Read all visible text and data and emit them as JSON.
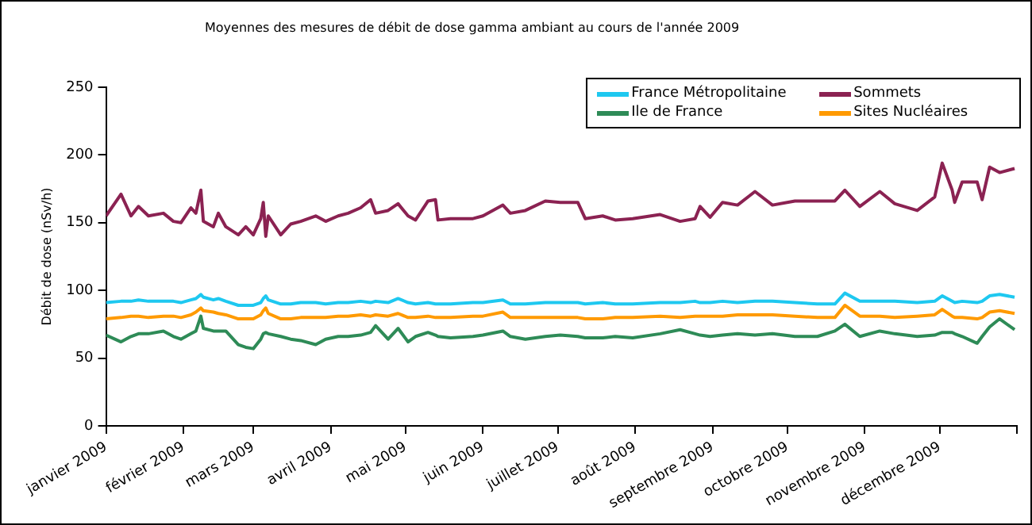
{
  "chart_data": {
    "type": "line",
    "title": "Moyennes des mesures de débit de dose gamma ambiant au cours de l'année 2009",
    "ylabel": "Débit de dose (nSv/h)",
    "x": [
      "2009-01-01",
      "2009-01-07",
      "2009-01-11",
      "2009-01-14",
      "2009-01-18",
      "2009-01-24",
      "2009-01-28",
      "2009-01-31",
      "2009-02-04",
      "2009-02-06",
      "2009-02-08",
      "2009-02-09",
      "2009-02-13",
      "2009-02-15",
      "2009-02-18",
      "2009-02-23",
      "2009-02-26",
      "2009-03-01",
      "2009-03-04",
      "2009-03-05",
      "2009-03-06",
      "2009-03-07",
      "2009-03-12",
      "2009-03-16",
      "2009-03-20",
      "2009-03-26",
      "2009-03-30",
      "2009-04-04",
      "2009-04-08",
      "2009-04-13",
      "2009-04-17",
      "2009-04-19",
      "2009-04-24",
      "2009-04-28",
      "2009-05-02",
      "2009-05-05",
      "2009-05-10",
      "2009-05-13",
      "2009-05-14",
      "2009-05-19",
      "2009-05-28",
      "2009-06-01",
      "2009-06-09",
      "2009-06-12",
      "2009-06-18",
      "2009-06-26",
      "2009-07-02",
      "2009-07-09",
      "2009-07-12",
      "2009-07-19",
      "2009-07-24",
      "2009-07-31",
      "2009-08-11",
      "2009-08-19",
      "2009-08-25",
      "2009-08-27",
      "2009-08-31",
      "2009-09-05",
      "2009-09-11",
      "2009-09-18",
      "2009-09-25",
      "2009-10-04",
      "2009-10-13",
      "2009-10-20",
      "2009-10-24",
      "2009-10-30",
      "2009-11-07",
      "2009-11-13",
      "2009-11-22",
      "2009-11-29",
      "2009-12-02",
      "2009-12-06",
      "2009-12-07",
      "2009-12-10",
      "2009-12-16",
      "2009-12-18",
      "2009-12-21",
      "2009-12-25",
      "2009-12-31"
    ],
    "series": [
      {
        "name": "France Métropolitaine",
        "color": "#1ec8f0",
        "values": [
          91,
          92,
          92,
          93,
          92,
          92,
          92,
          91,
          93,
          94,
          97,
          95,
          93,
          94,
          92,
          89,
          89,
          89,
          91,
          94,
          96,
          93,
          90,
          90,
          91,
          91,
          90,
          91,
          91,
          92,
          91,
          92,
          91,
          94,
          91,
          90,
          91,
          90,
          90,
          90,
          91,
          91,
          93,
          90,
          90,
          91,
          91,
          91,
          90,
          91,
          90,
          90,
          91,
          91,
          92,
          91,
          91,
          92,
          91,
          92,
          92,
          91,
          90,
          90,
          98,
          92,
          92,
          92,
          91,
          92,
          96,
          92,
          91,
          92,
          91,
          92,
          96,
          97,
          95
        ]
      },
      {
        "name": "Sommets",
        "color": "#8b2252",
        "values": [
          155,
          171,
          155,
          162,
          155,
          157,
          151,
          150,
          161,
          157,
          174,
          151,
          147,
          157,
          147,
          141,
          147,
          141,
          153,
          165,
          140,
          155,
          141,
          149,
          151,
          155,
          151,
          155,
          157,
          161,
          167,
          157,
          159,
          164,
          155,
          152,
          166,
          167,
          152,
          153,
          153,
          155,
          163,
          157,
          159,
          166,
          165,
          165,
          153,
          155,
          152,
          153,
          156,
          151,
          153,
          162,
          154,
          165,
          163,
          173,
          163,
          166,
          166,
          166,
          174,
          162,
          173,
          164,
          159,
          169,
          194,
          174,
          165,
          180,
          180,
          167,
          191,
          187,
          190
        ]
      },
      {
        "name": "Ile de France",
        "color": "#2e8b57",
        "values": [
          67,
          62,
          66,
          68,
          68,
          70,
          66,
          64,
          68,
          70,
          81,
          72,
          70,
          70,
          70,
          60,
          58,
          57,
          64,
          68,
          69,
          68,
          66,
          64,
          63,
          60,
          64,
          66,
          66,
          67,
          69,
          74,
          64,
          72,
          62,
          66,
          69,
          67,
          66,
          65,
          66,
          67,
          70,
          66,
          64,
          66,
          67,
          66,
          65,
          65,
          66,
          65,
          68,
          71,
          68,
          67,
          66,
          67,
          68,
          67,
          68,
          66,
          66,
          70,
          75,
          66,
          70,
          68,
          66,
          67,
          69,
          69,
          68,
          66,
          61,
          66,
          73,
          79,
          71
        ]
      },
      {
        "name": "Sites Nucléaires",
        "color": "#ff9a00",
        "values": [
          79,
          80,
          81,
          81,
          80,
          81,
          81,
          80,
          82,
          84,
          87,
          85,
          84,
          83,
          82,
          79,
          79,
          79,
          82,
          85,
          87,
          83,
          79,
          79,
          80,
          80,
          80,
          81,
          81,
          82,
          81,
          82,
          81,
          83,
          80,
          80,
          81,
          80,
          80,
          80,
          81,
          81,
          84,
          80,
          80,
          80,
          80,
          80,
          79,
          79,
          80,
          80,
          81,
          80,
          81,
          81,
          81,
          81,
          82,
          82,
          82,
          81,
          80,
          80,
          89,
          81,
          81,
          80,
          81,
          82,
          86,
          81,
          80,
          80,
          79,
          80,
          84,
          85,
          83
        ]
      }
    ],
    "xlim": [
      "2009-01-01",
      "2010-01-01"
    ],
    "xticks": [
      {
        "value": "2009-01-01",
        "label": "janvier 2009"
      },
      {
        "value": "2009-02-01",
        "label": "février 2009"
      },
      {
        "value": "2009-03-01",
        "label": "mars 2009"
      },
      {
        "value": "2009-04-01",
        "label": "avril 2009"
      },
      {
        "value": "2009-05-01",
        "label": "mai 2009"
      },
      {
        "value": "2009-06-01",
        "label": "juin 2009"
      },
      {
        "value": "2009-07-01",
        "label": "juillet 2009"
      },
      {
        "value": "2009-08-01",
        "label": "août 2009"
      },
      {
        "value": "2009-09-01",
        "label": "septembre 2009"
      },
      {
        "value": "2009-10-01",
        "label": "octobre 2009"
      },
      {
        "value": "2009-11-01",
        "label": "novembre 2009"
      },
      {
        "value": "2009-12-01",
        "label": "décembre 2009"
      },
      {
        "value": "2010-01-01",
        "label": null
      }
    ],
    "ylim": [
      0,
      250
    ],
    "yticks": [
      0,
      50,
      100,
      150,
      200,
      250
    ],
    "grid": false,
    "legend": "top right",
    "marker": "none",
    "line_style": "solid"
  }
}
